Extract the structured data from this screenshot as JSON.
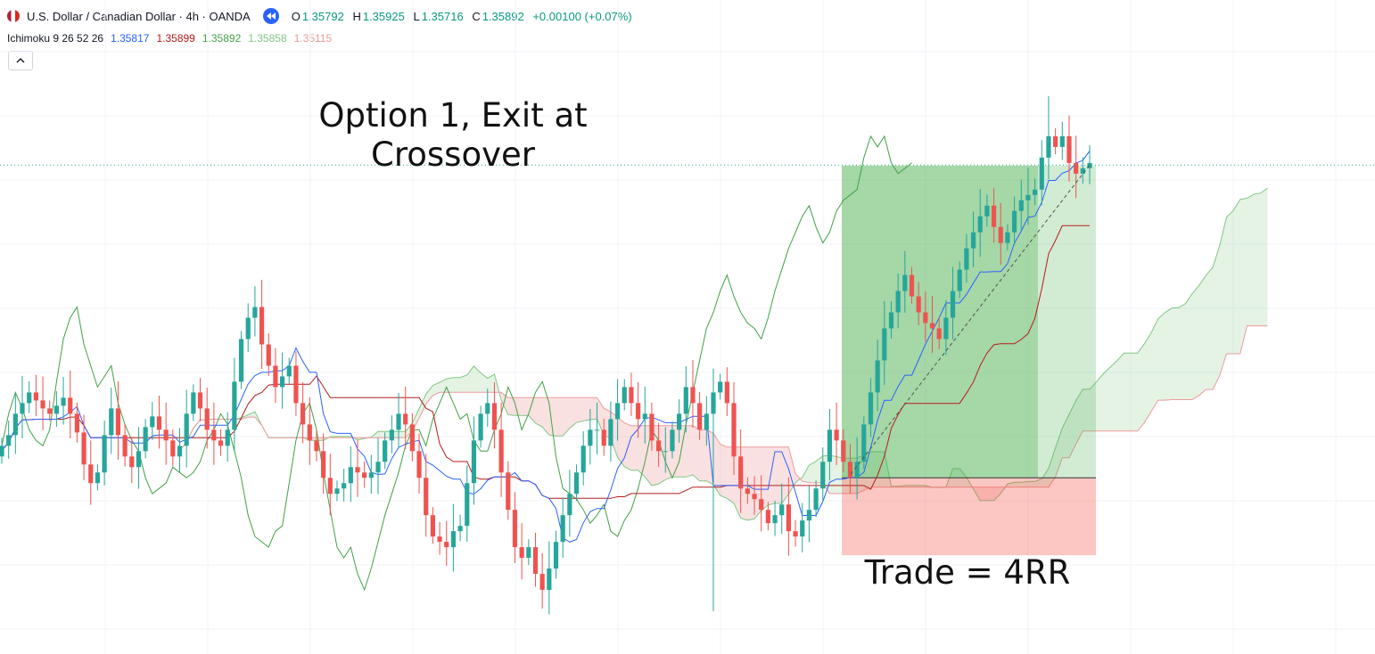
{
  "header": {
    "symbol_title": "U.S. Dollar / Canadian Dollar · 4h · OANDA",
    "ohlc": {
      "o_label": "O",
      "o": "1.35792",
      "h_label": "H",
      "h": "1.35925",
      "l_label": "L",
      "l": "1.35716",
      "c_label": "C",
      "c": "1.35892",
      "change": "+0.00100 (+0.07%)"
    },
    "indicator": {
      "name": "Ichimoku 9 26 52 26",
      "values": [
        "1.35817",
        "1.35899",
        "1.35892",
        "1.35858",
        "1.35115"
      ],
      "colors": [
        "#2962ff",
        "#b71c1c",
        "#43a047",
        "#81c784",
        "#ef9a9a"
      ]
    }
  },
  "annotations": {
    "option_line1": "Option 1, Exit at",
    "option_line2": "Crossover",
    "trade_result": "Trade = 4RR"
  },
  "colors": {
    "up": "#26a69a",
    "down": "#ef5350",
    "tenkan": "#2962ff",
    "kijun": "#b71c1c",
    "chikou": "#43a047",
    "cloud_bull": "#a5d6a7",
    "cloud_bear": "#ef9a9a",
    "profit_zone": "#4caf50",
    "loss_zone": "#f44336"
  },
  "chart_data": {
    "type": "candlestick",
    "title": "U.S. Dollar / Canadian Dollar · 4h · OANDA",
    "y_unit": "USDCAD price (approx.)",
    "last_close": 1.35892,
    "trade": {
      "entry": 1.3472,
      "take_profit": 1.3589,
      "stop_loss": 1.3443,
      "result": "Trade = 4RR"
    },
    "close_series": [
      1.3484,
      1.3488,
      1.3496,
      1.35,
      1.3504,
      1.3501,
      1.3498,
      1.3496,
      1.3499,
      1.3502,
      1.3496,
      1.3489,
      1.3477,
      1.347,
      1.3474,
      1.3488,
      1.3498,
      1.3488,
      1.348,
      1.3476,
      1.3482,
      1.3491,
      1.3495,
      1.349,
      1.3486,
      1.348,
      1.3484,
      1.3496,
      1.3504,
      1.3498,
      1.349,
      1.3486,
      1.3484,
      1.349,
      1.3508,
      1.3524,
      1.3532,
      1.3536,
      1.3522,
      1.3514,
      1.3506,
      1.351,
      1.3514,
      1.35,
      1.3492,
      1.3486,
      1.3482,
      1.3472,
      1.3466,
      1.3468,
      1.347,
      1.3476,
      1.3474,
      1.3472,
      1.3474,
      1.3478,
      1.3486,
      1.349,
      1.3496,
      1.3492,
      1.3482,
      1.3472,
      1.3458,
      1.345,
      1.3448,
      1.3446,
      1.3452,
      1.3454,
      1.347,
      1.3486,
      1.3496,
      1.35,
      1.349,
      1.3474,
      1.346,
      1.3446,
      1.3442,
      1.3446,
      1.3436,
      1.343,
      1.3438,
      1.3448,
      1.3458,
      1.3466,
      1.3474,
      1.3484,
      1.349,
      1.349,
      1.3484,
      1.3494,
      1.35,
      1.3506,
      1.35,
      1.3494,
      1.3496,
      1.3486,
      1.3482,
      1.3482,
      1.349,
      1.3496,
      1.3506,
      1.35,
      1.349,
      1.3496,
      1.3504,
      1.3508,
      1.35,
      1.348,
      1.3468,
      1.3466,
      1.3464,
      1.346,
      1.3455,
      1.3458,
      1.3462,
      1.3452,
      1.345,
      1.3456,
      1.346,
      1.3468,
      1.3478,
      1.349,
      1.3486,
      1.3478,
      1.3472,
      1.3478,
      1.3492,
      1.3504,
      1.3516,
      1.3528,
      1.3534,
      1.3542,
      1.3548,
      1.354,
      1.3534,
      1.353,
      1.3528,
      1.3524,
      1.3532,
      1.3542,
      1.355,
      1.3558,
      1.3564,
      1.357,
      1.3574,
      1.3566,
      1.356,
      1.3564,
      1.3572,
      1.3576,
      1.3578,
      1.358,
      1.3592,
      1.36,
      1.3596,
      1.36,
      1.359,
      1.3586,
      1.3588,
      1.359
    ],
    "markers": {
      "swing_high": 1.3615,
      "swing_low": 1.3422
    }
  }
}
